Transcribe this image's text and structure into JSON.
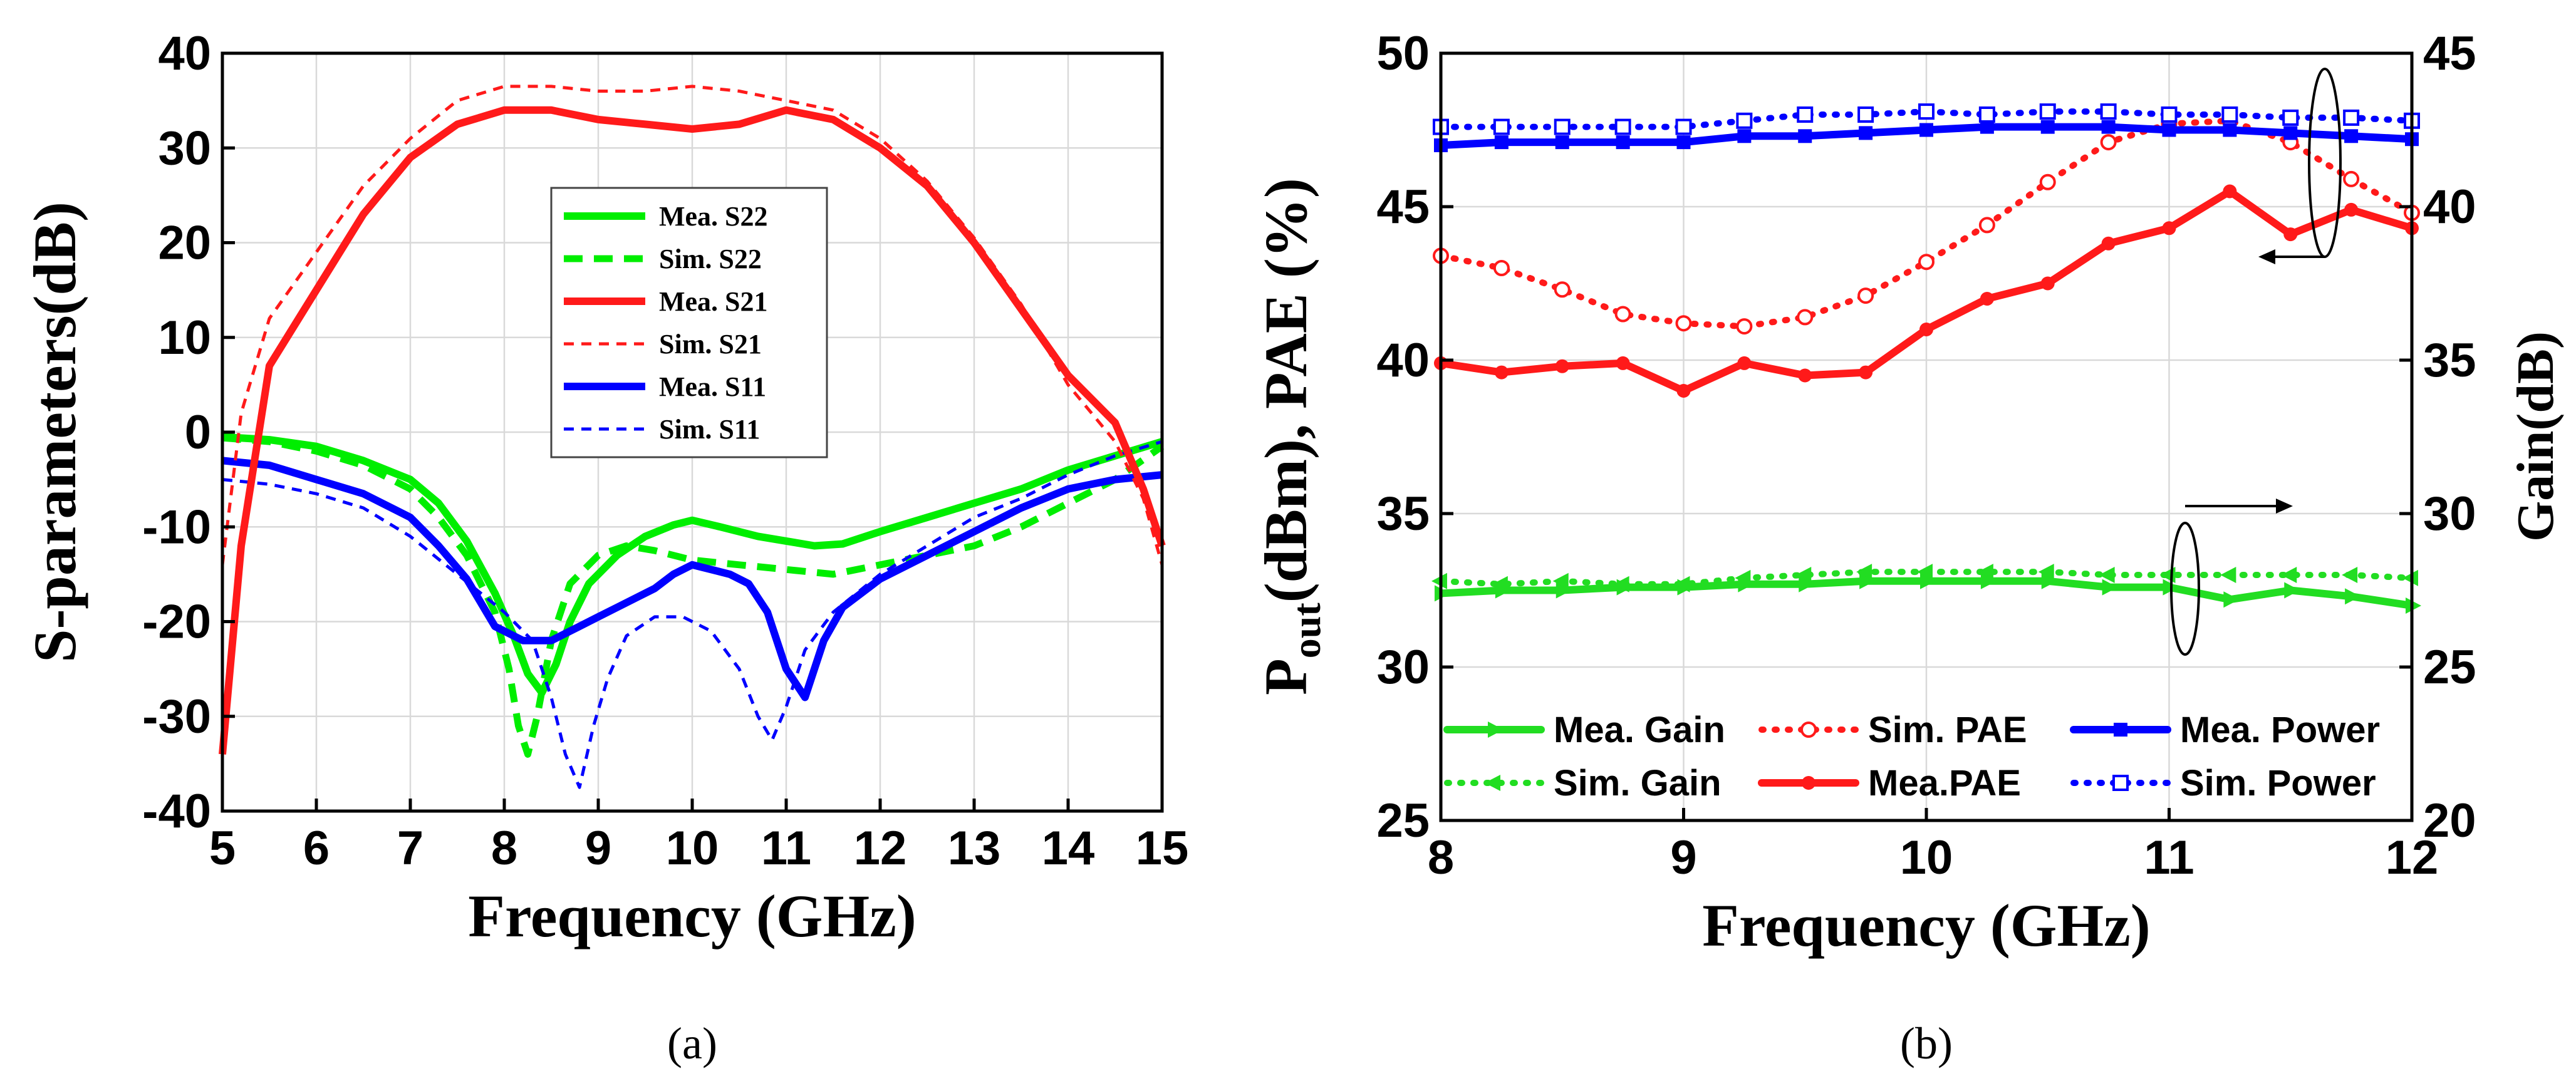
{
  "chart_data": [
    {
      "type": "line",
      "panel_label": "(a)",
      "xlabel": "Frequency (GHz)",
      "ylabel": "S-parameters(dB)",
      "xlim": [
        5,
        15
      ],
      "ylim": [
        -40,
        40
      ],
      "xticks": [
        5,
        6,
        7,
        8,
        9,
        10,
        11,
        12,
        13,
        14,
        15
      ],
      "yticks": [
        -40,
        -30,
        -20,
        -10,
        0,
        10,
        20,
        30,
        40
      ],
      "grid": true,
      "legend_position": "center",
      "series": [
        {
          "name": "Mea. S22",
          "color": "#00ee00",
          "style": "solid",
          "x": [
            5,
            5.5,
            6,
            6.5,
            7,
            7.3,
            7.6,
            7.9,
            8.1,
            8.25,
            8.4,
            8.55,
            8.7,
            8.9,
            9.2,
            9.5,
            9.8,
            10,
            10.3,
            10.7,
            11,
            11.3,
            11.6,
            12,
            12.5,
            13,
            13.5,
            14,
            14.5,
            15
          ],
          "y": [
            -0.5,
            -0.8,
            -1.5,
            -3,
            -5,
            -7.5,
            -11.5,
            -17,
            -21.5,
            -25.5,
            -27.5,
            -24.5,
            -20,
            -16,
            -13,
            -11,
            -9.8,
            -9.3,
            -10,
            -11,
            -11.5,
            -12,
            -11.8,
            -10.5,
            -9,
            -7.5,
            -6,
            -4,
            -2.5,
            -1
          ]
        },
        {
          "name": "Sim.  S22",
          "color": "#00ee00",
          "style": "dashed",
          "x": [
            5,
            5.5,
            6,
            6.5,
            7,
            7.3,
            7.6,
            7.9,
            8.05,
            8.15,
            8.25,
            8.35,
            8.5,
            8.7,
            9,
            9.3,
            9.6,
            10,
            10.5,
            11,
            11.5,
            12,
            12.5,
            13,
            13.5,
            14,
            14.5,
            15
          ],
          "y": [
            -0.6,
            -1,
            -2,
            -3.5,
            -6,
            -9,
            -13,
            -19,
            -25,
            -31,
            -34,
            -30,
            -22,
            -16,
            -13,
            -12,
            -12.5,
            -13.5,
            -14,
            -14.5,
            -15,
            -14,
            -13,
            -12,
            -10,
            -7.5,
            -5,
            -1.5
          ]
        },
        {
          "name": "Mea. S21",
          "color": "#ff1a1a",
          "style": "solid",
          "x": [
            5,
            5.2,
            5.5,
            6,
            6.5,
            7,
            7.5,
            8,
            8.5,
            9,
            9.5,
            10,
            10.5,
            11,
            11.5,
            12,
            12.5,
            13,
            13.5,
            14,
            14.5,
            14.8,
            15
          ],
          "y": [
            -34,
            -12,
            7,
            15,
            23,
            29,
            32.5,
            34,
            34,
            33,
            32.5,
            32,
            32.5,
            34,
            33,
            30,
            26,
            20,
            13,
            6,
            1,
            -6,
            -12
          ]
        },
        {
          "name": "Sim.  S21",
          "color": "#ff1a1a",
          "style": "short-dash",
          "x": [
            5,
            5.2,
            5.5,
            6,
            6.5,
            7,
            7.5,
            8,
            8.5,
            9,
            9.5,
            10,
            10.5,
            11,
            11.5,
            12,
            12.5,
            13,
            13.5,
            14,
            14.5,
            14.8,
            15
          ],
          "y": [
            -14,
            2,
            12,
            19,
            26,
            31,
            35,
            36.5,
            36.5,
            36,
            36,
            36.5,
            36,
            35,
            34,
            31,
            26.5,
            20.5,
            13.5,
            5,
            -1,
            -7,
            -14
          ]
        },
        {
          "name": "Mea. S11",
          "color": "#0000ff",
          "style": "solid",
          "x": [
            5,
            5.5,
            6,
            6.5,
            7,
            7.3,
            7.6,
            7.9,
            8.2,
            8.5,
            8.8,
            9,
            9.2,
            9.4,
            9.6,
            9.8,
            10,
            10.2,
            10.4,
            10.6,
            10.8,
            11,
            11.2,
            11.4,
            11.6,
            12,
            12.5,
            13,
            13.5,
            14,
            14.5,
            15
          ],
          "y": [
            -3,
            -3.5,
            -5,
            -6.5,
            -9,
            -12,
            -15.5,
            -20.5,
            -22,
            -22,
            -20.5,
            -19.5,
            -18.5,
            -17.5,
            -16.5,
            -15,
            -14,
            -14.5,
            -15,
            -16,
            -19,
            -25,
            -28,
            -22,
            -18.5,
            -15.5,
            -13,
            -10.5,
            -8,
            -6,
            -5,
            -4.5
          ]
        },
        {
          "name": "Sim.  S11",
          "color": "#0000ff",
          "style": "short-dash",
          "x": [
            5,
            5.5,
            6,
            6.5,
            7,
            7.5,
            8,
            8.3,
            8.5,
            8.65,
            8.8,
            8.95,
            9.1,
            9.3,
            9.6,
            9.9,
            10.2,
            10.5,
            10.7,
            10.85,
            11,
            11.2,
            11.5,
            12,
            12.5,
            13,
            13.5,
            14,
            14.5,
            15
          ],
          "y": [
            -5,
            -5.5,
            -6.5,
            -8,
            -11,
            -15,
            -19,
            -22,
            -28,
            -34,
            -37.5,
            -31,
            -26,
            -21.5,
            -19.5,
            -19.5,
            -21,
            -25,
            -30,
            -32.5,
            -29,
            -23,
            -19,
            -15,
            -12,
            -9,
            -7,
            -4.5,
            -2.5,
            -1
          ]
        }
      ]
    },
    {
      "type": "line",
      "panel_label": "(b)",
      "xlabel": "Frequency (GHz)",
      "ylabel_main": "P",
      "ylabel_sub": "out",
      "ylabel_rest": "(dBm), PAE (%)",
      "y2label": "Gain(dB)",
      "xlim": [
        8,
        12
      ],
      "ylim": [
        25,
        50
      ],
      "y2lim": [
        20,
        45
      ],
      "xticks": [
        8,
        9,
        10,
        11,
        12
      ],
      "yticks": [
        25,
        30,
        35,
        40,
        45,
        50
      ],
      "y2ticks": [
        20,
        25,
        30,
        35,
        40,
        45
      ],
      "grid": true,
      "legend_position": "bottom",
      "x": [
        8,
        8.25,
        8.5,
        8.75,
        9,
        9.25,
        9.5,
        9.75,
        10,
        10.25,
        10.5,
        10.75,
        11,
        11.25,
        11.5,
        11.75,
        12
      ],
      "series": [
        {
          "name": "Mea. Gain",
          "color": "#22dd22",
          "style": "solid",
          "marker": "triangle-right",
          "axis": "right",
          "y": [
            27.4,
            27.5,
            27.5,
            27.6,
            27.6,
            27.7,
            27.7,
            27.8,
            27.8,
            27.8,
            27.8,
            27.6,
            27.6,
            27.2,
            27.5,
            27.3,
            27.0
          ]
        },
        {
          "name": "Sim. Gain",
          "color": "#22dd22",
          "style": "dotted",
          "marker": "triangle-left",
          "axis": "right",
          "y": [
            27.8,
            27.7,
            27.8,
            27.7,
            27.7,
            27.9,
            28.0,
            28.1,
            28.1,
            28.1,
            28.1,
            28.0,
            28.0,
            28.0,
            28.0,
            28.0,
            27.9
          ]
        },
        {
          "name": "Sim. PAE",
          "color": "#ff1a1a",
          "style": "dotted",
          "marker": "open-circle",
          "axis": "left",
          "y": [
            43.4,
            43.0,
            42.3,
            41.5,
            41.2,
            41.1,
            41.4,
            42.1,
            43.2,
            44.4,
            45.8,
            47.1,
            47.7,
            47.8,
            47.1,
            45.9,
            44.8
          ]
        },
        {
          "name": "Mea.PAE",
          "color": "#ff1a1a",
          "style": "solid",
          "marker": "filled-circle",
          "axis": "left",
          "y": [
            39.9,
            39.6,
            39.8,
            39.9,
            39.0,
            39.9,
            39.5,
            39.6,
            41.0,
            42.0,
            42.5,
            43.8,
            44.3,
            45.5,
            44.1,
            44.9,
            44.3
          ]
        },
        {
          "name": "Mea. Power",
          "color": "#0000ff",
          "style": "solid",
          "marker": "filled-square",
          "axis": "left",
          "y": [
            47.0,
            47.1,
            47.1,
            47.1,
            47.1,
            47.3,
            47.3,
            47.4,
            47.5,
            47.6,
            47.6,
            47.6,
            47.5,
            47.5,
            47.4,
            47.3,
            47.2
          ]
        },
        {
          "name": "Sim. Power",
          "color": "#0000ff",
          "style": "dotted",
          "marker": "open-square",
          "axis": "left",
          "y": [
            47.6,
            47.6,
            47.6,
            47.6,
            47.6,
            47.8,
            48.0,
            48.0,
            48.1,
            48.0,
            48.1,
            48.1,
            48.0,
            48.0,
            47.9,
            47.9,
            47.8
          ]
        }
      ]
    }
  ]
}
